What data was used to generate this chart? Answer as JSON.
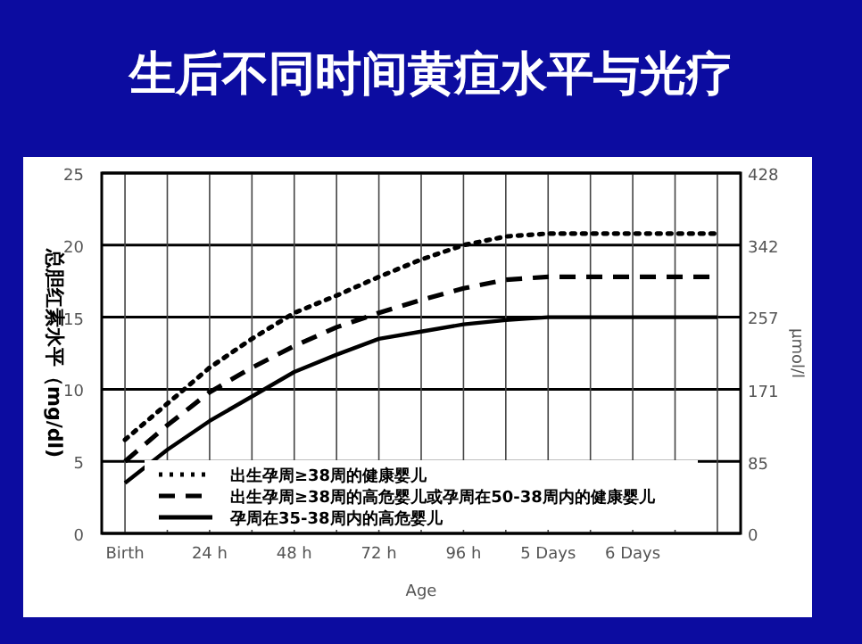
{
  "chart_data": {
    "type": "line",
    "title": "生后不同时间黄疸水平与光疗",
    "xlabel": "Age",
    "ylabel": "总胆红素水平（mg/dl)",
    "y2label": "μmol/l",
    "categories": [
      "Birth",
      null,
      "24 h",
      null,
      "48 h",
      null,
      "72 h",
      null,
      "96 h",
      null,
      "5 Days",
      null,
      "6 Days",
      null,
      null
    ],
    "ylim": [
      0,
      25
    ],
    "yticks": [
      0,
      5,
      10,
      15,
      20,
      25
    ],
    "y2lim": [
      0,
      428
    ],
    "y2ticks": [
      0,
      85,
      171,
      257,
      342,
      428
    ],
    "grid": true,
    "legend": "bottom left",
    "series": [
      {
        "name": "出生孕周≥38周的健康婴儿",
        "color": "#000000",
        "line_style": "dotted",
        "values": [
          6.5,
          9,
          11.5,
          13.5,
          15.3,
          16.5,
          17.8,
          19,
          20,
          20.6,
          20.8,
          20.8,
          20.8,
          20.8,
          20.8
        ]
      },
      {
        "name": "出生孕周≥38周的高危婴儿或孕周在50-38周内的健康婴儿",
        "color": "#000000",
        "line_style": "dashed",
        "values": [
          5,
          7.5,
          9.8,
          11.5,
          13,
          14.3,
          15.3,
          16.2,
          17,
          17.6,
          17.8,
          17.8,
          17.8,
          17.8,
          17.8
        ]
      },
      {
        "name": "孕周在35-38周内的高危婴儿",
        "color": "#000000",
        "line_style": "solid",
        "values": [
          3.5,
          5.8,
          7.8,
          9.5,
          11.2,
          12.4,
          13.5,
          14,
          14.5,
          14.8,
          15,
          15,
          15,
          15,
          15
        ]
      }
    ]
  }
}
